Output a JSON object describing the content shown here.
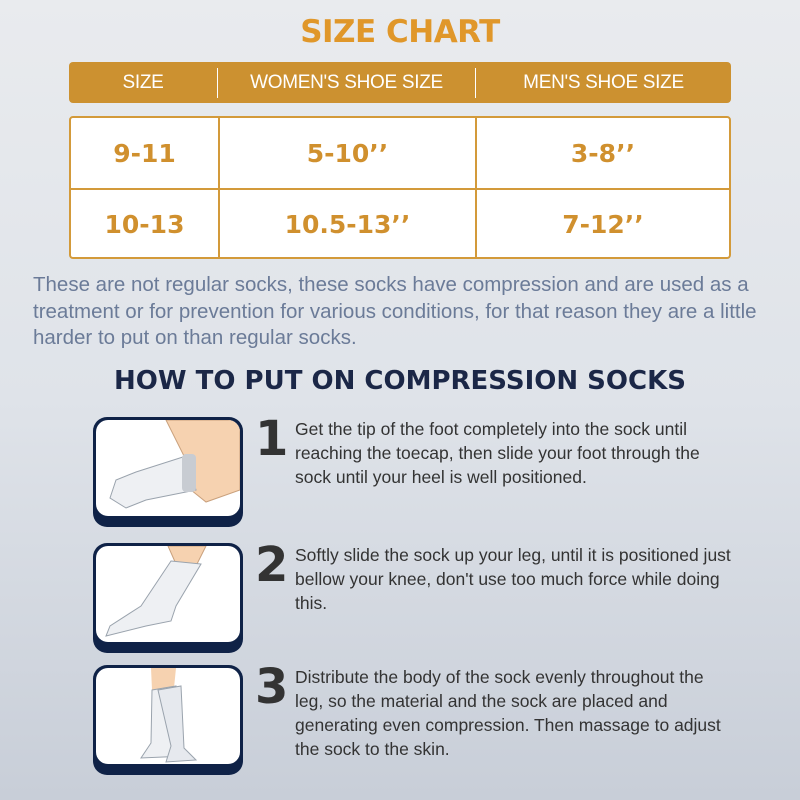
{
  "title": "SIZE CHART",
  "table": {
    "headers": [
      "SIZE",
      "WOMEN'S SHOE SIZE",
      "MEN'S SHOE SIZE"
    ],
    "rows": [
      [
        "9-11",
        "5-10’’",
        "3-8’’"
      ],
      [
        "10-13",
        "10.5-13’’",
        "7-12’’"
      ]
    ]
  },
  "intro": "These are not regular socks, these socks have compression and are used as a treatment or for prevention for various conditions, for that reason they are a little harder to put on than regular socks.",
  "how_title": "HOW TO PUT ON COMPRESSION SOCKS",
  "steps": [
    {
      "num": "1",
      "text": "Get the tip of the foot completely into the sock until reaching the toecap, then slide your foot through the sock until your heel is well positioned."
    },
    {
      "num": "2",
      "text": "Softly slide the sock up your leg, until it is positioned just bellow your knee, don't use too much force while doing this."
    },
    {
      "num": "3",
      "text": "Distribute the body of the sock evenly throughout the leg, so the material and the sock are placed and generating even compression. Then massage to adjust the sock to the skin."
    }
  ],
  "colors": {
    "gold": "#cc9130",
    "navy": "#0f2247",
    "text_blue": "#6b7b98"
  }
}
